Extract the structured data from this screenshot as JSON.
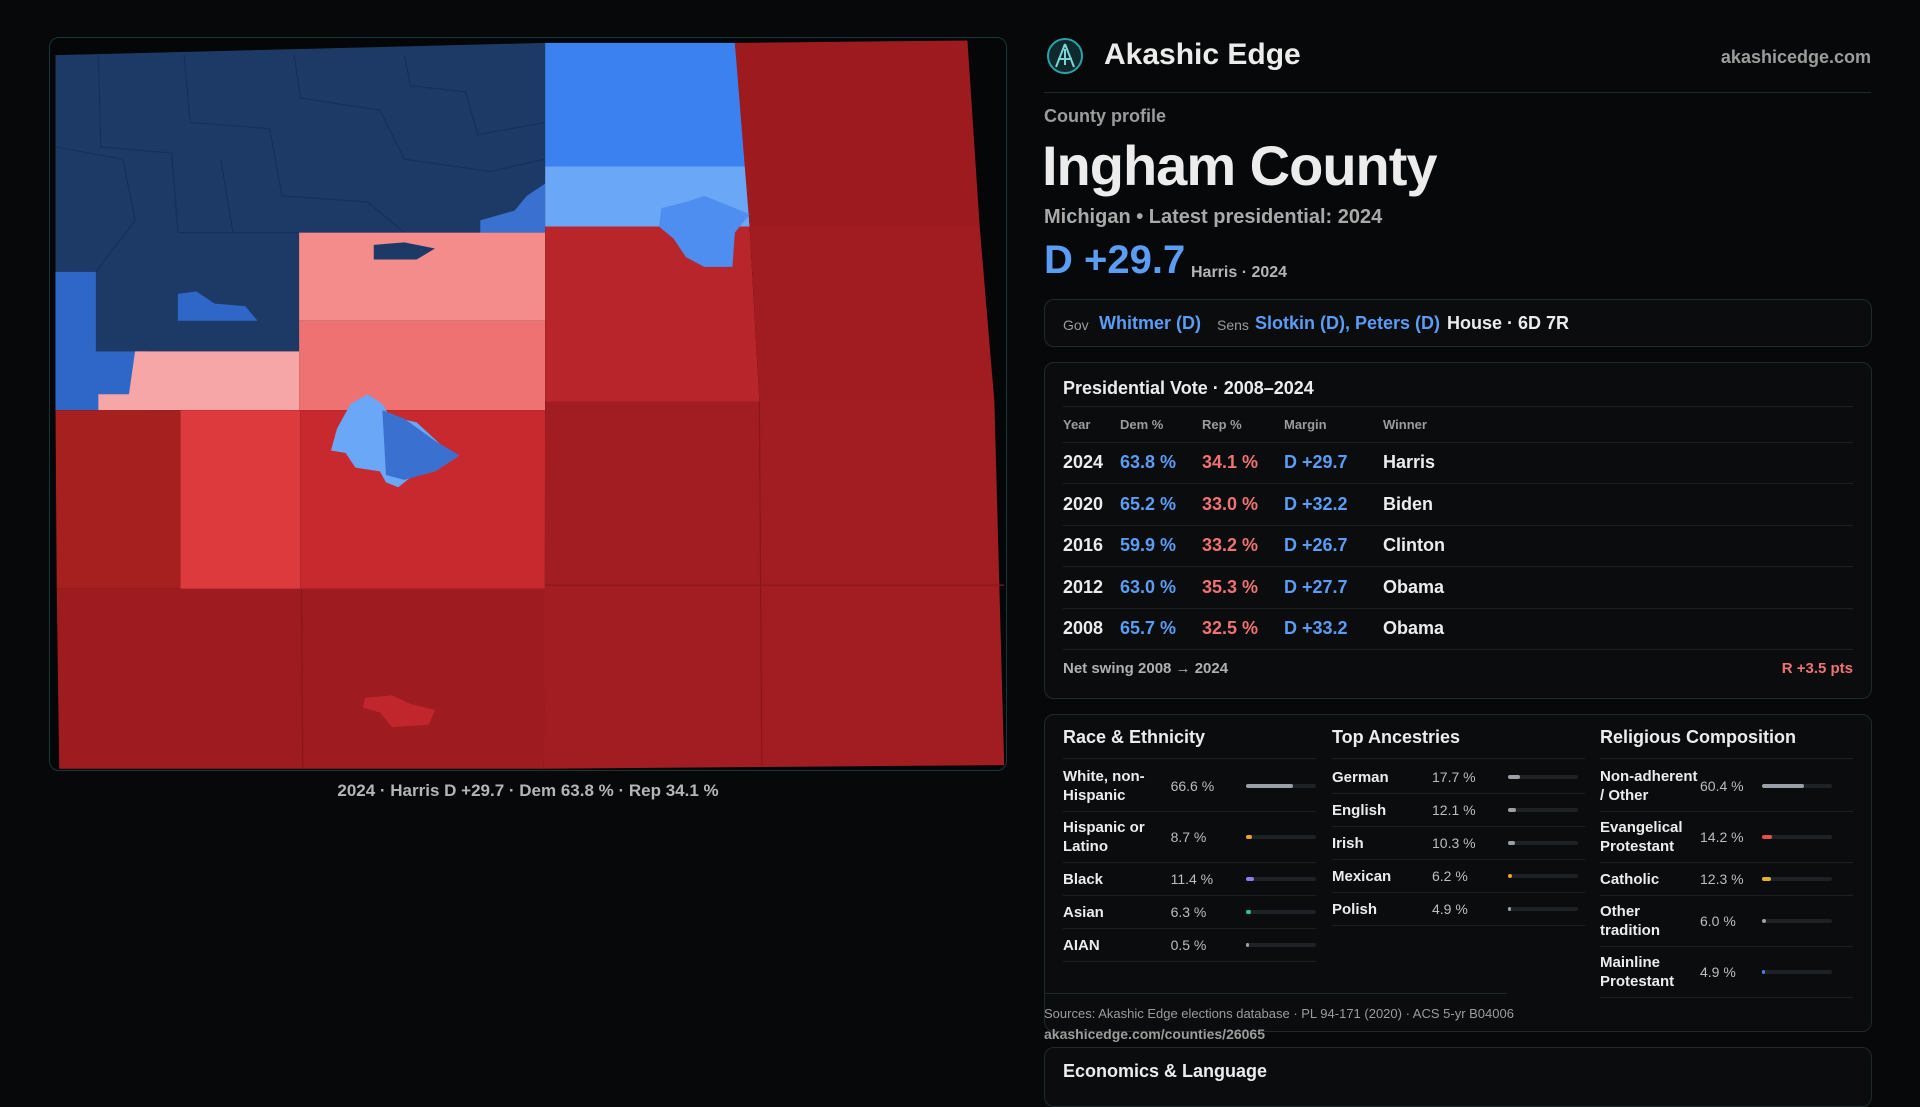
{
  "brand": {
    "name": "Akashic Edge",
    "site": "akashicedge.com"
  },
  "profile": {
    "kicker": "County profile",
    "title": "Ingham County",
    "subtitle": "Michigan • Latest presidential: 2024",
    "margin": "D +29.7",
    "margin_note": "Harris · 2024"
  },
  "officials": {
    "gov_label": "Gov",
    "gov": "Whitmer (D)",
    "sens_label": "Sens",
    "sens": "Slotkin (D), Peters (D)",
    "house": "House · 6D 7R"
  },
  "map_caption": "2024 · Harris D +29.7 · Dem 63.8 % · Rep 34.1 %",
  "presidential": {
    "title": "Presidential Vote · 2008–2024",
    "columns": [
      "Year",
      "Dem %",
      "Rep %",
      "Margin",
      "Winner"
    ],
    "rows": [
      [
        "2024",
        "63.8 %",
        "34.1 %",
        "D +29.7",
        "Harris"
      ],
      [
        "2020",
        "65.2 %",
        "33.0 %",
        "D +32.2",
        "Biden"
      ],
      [
        "2016",
        "59.9 %",
        "33.2 %",
        "D +26.7",
        "Clinton"
      ],
      [
        "2012",
        "63.0 %",
        "35.3 %",
        "D +27.7",
        "Obama"
      ],
      [
        "2008",
        "65.7 %",
        "32.5 %",
        "D +33.2",
        "Obama"
      ]
    ],
    "swing_label": "Net swing 2008 → 2024",
    "swing_value": "R +3.5 pts"
  },
  "demographics": [
    {
      "title": "Race & Ethnicity",
      "items": [
        {
          "label": "White, non-Hispanic",
          "value": 66.6,
          "value_label": "66.6 %",
          "color": "#9aa0a8"
        },
        {
          "label": "Hispanic or Latino",
          "value": 8.7,
          "value_label": "8.7 %",
          "color": "#f0a030"
        },
        {
          "label": "Black",
          "value": 11.4,
          "value_label": "11.4 %",
          "color": "#8b7cf0"
        },
        {
          "label": "Asian",
          "value": 6.3,
          "value_label": "6.3 %",
          "color": "#2fc08f"
        },
        {
          "label": "AIAN",
          "value": 0.5,
          "value_label": "0.5 %",
          "color": "#9aa0a8"
        }
      ]
    },
    {
      "title": "Top Ancestries",
      "items": [
        {
          "label": "German",
          "value": 17.7,
          "value_label": "17.7 %",
          "color": "#9aa0a8"
        },
        {
          "label": "English",
          "value": 12.1,
          "value_label": "12.1 %",
          "color": "#9aa0a8"
        },
        {
          "label": "Irish",
          "value": 10.3,
          "value_label": "10.3 %",
          "color": "#9aa0a8"
        },
        {
          "label": "Mexican",
          "value": 6.2,
          "value_label": "6.2 %",
          "color": "#f0a030"
        },
        {
          "label": "Polish",
          "value": 4.9,
          "value_label": "4.9 %",
          "color": "#9aa0a8"
        }
      ]
    },
    {
      "title": "Religious Composition",
      "items": [
        {
          "label": "Non-adherent / Other",
          "value": 60.4,
          "value_label": "60.4 %",
          "color": "#9aa0a8"
        },
        {
          "label": "Evangelical Protestant",
          "value": 14.2,
          "value_label": "14.2 %",
          "color": "#e05050"
        },
        {
          "label": "Catholic",
          "value": 12.3,
          "value_label": "12.3 %",
          "color": "#e0b030"
        },
        {
          "label": "Other tradition",
          "value": 6.0,
          "value_label": "6.0 %",
          "color": "#9aa0a8"
        },
        {
          "label": "Mainline Protestant",
          "value": 4.9,
          "value_label": "4.9 %",
          "color": "#4a80e0"
        }
      ]
    }
  ],
  "sources": "Sources: Akashic Edge elections database · PL 94-171 (2020) · ACS 5-yr B04006",
  "url": "akashicedge.com/counties/26065",
  "next_section": "Economics & Language"
}
